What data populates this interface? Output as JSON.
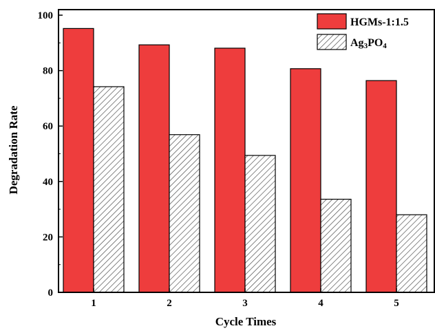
{
  "chart_data": {
    "type": "bar",
    "title": "",
    "xlabel": "Cycle Times",
    "ylabel": "Degradation Rate",
    "categories": [
      "1",
      "2",
      "3",
      "4",
      "5"
    ],
    "ylim": [
      0,
      102
    ],
    "yticks": [
      "0",
      "20",
      "40",
      "60",
      "80",
      "100"
    ],
    "grid": false,
    "legend_position": "top-right",
    "series": [
      {
        "name": "HGMs-1:1.5",
        "values": [
          95.2,
          89.3,
          88.1,
          80.7,
          76.4
        ],
        "color": "#ee3d3d",
        "fill": "solid"
      },
      {
        "name": "Ag3PO4",
        "legend": {
          "base": "Ag",
          "sub1": "3",
          "mid": "PO",
          "sub2": "4"
        },
        "values": [
          74.2,
          56.9,
          49.4,
          33.6,
          28.0
        ],
        "color": "#ffffff",
        "fill": "diagonal-hatch"
      }
    ]
  }
}
